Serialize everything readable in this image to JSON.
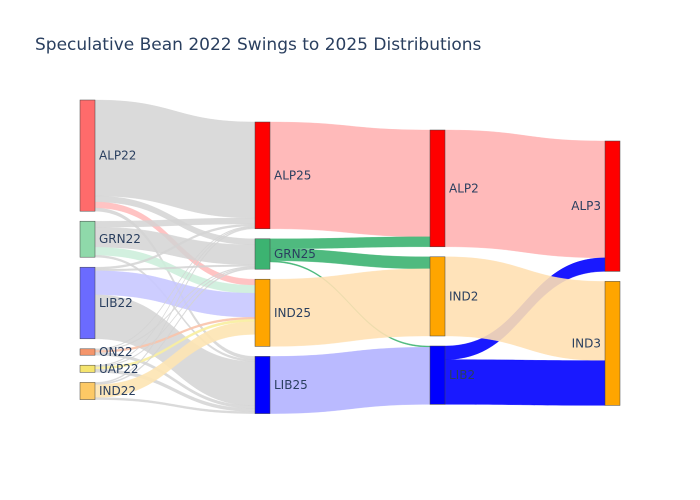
{
  "chart_data": {
    "type": "sankey",
    "title": "Speculative Bean 2022 Swings to 2025 Distributions",
    "nodes": [
      {
        "id": "ALP22",
        "label": "ALP22",
        "color": "#ff6b6b"
      },
      {
        "id": "GRN22",
        "label": "GRN22",
        "color": "#8fd9aa"
      },
      {
        "id": "LIB22",
        "label": "LIB22",
        "color": "#6b6bff"
      },
      {
        "id": "ON22",
        "label": "ON22",
        "color": "#f4956b"
      },
      {
        "id": "UAP22",
        "label": "UAP22",
        "color": "#f5e46e"
      },
      {
        "id": "IND22",
        "label": "IND22",
        "color": "#fdc965"
      },
      {
        "id": "ALP25",
        "label": "ALP25",
        "color": "#ff0000"
      },
      {
        "id": "GRN25",
        "label": "GRN25",
        "color": "#3cb371"
      },
      {
        "id": "IND25",
        "label": "IND25",
        "color": "#ffa500"
      },
      {
        "id": "LIB25",
        "label": "LIB25",
        "color": "#0000ff"
      },
      {
        "id": "ALP2",
        "label": "ALP2",
        "color": "#ff0000"
      },
      {
        "id": "IND2",
        "label": "IND2",
        "color": "#ffa500"
      },
      {
        "id": "LIB2",
        "label": "LIB2",
        "color": "#0000ff"
      },
      {
        "id": "ALP3",
        "label": "ALP3",
        "color": "#ff0000"
      },
      {
        "id": "IND3",
        "label": "IND3",
        "color": "#ffa500"
      }
    ],
    "links": [
      {
        "source": "ALP22",
        "target": "ALP25",
        "value": 24,
        "color": "#d3d3d3"
      },
      {
        "source": "ALP22",
        "target": "GRN25",
        "value": 1.5,
        "color": "#d3d3d3"
      },
      {
        "source": "ALP22",
        "target": "IND25",
        "value": 1.5,
        "color": "#ffbcbc"
      },
      {
        "source": "ALP22",
        "target": "LIB25",
        "value": 0.8,
        "color": "#d3d3d3"
      },
      {
        "source": "GRN22",
        "target": "ALP25",
        "value": 1.5,
        "color": "#d3d3d3"
      },
      {
        "source": "GRN22",
        "target": "GRN25",
        "value": 5,
        "color": "#d3d3d3"
      },
      {
        "source": "GRN22",
        "target": "IND25",
        "value": 2,
        "color": "#cdeedb"
      },
      {
        "source": "GRN22",
        "target": "LIB25",
        "value": 0.5,
        "color": "#d3d3d3"
      },
      {
        "source": "LIB22",
        "target": "ALP25",
        "value": 0.5,
        "color": "#d3d3d3"
      },
      {
        "source": "LIB22",
        "target": "GRN25",
        "value": 0.4,
        "color": "#d3d3d3"
      },
      {
        "source": "LIB22",
        "target": "IND25",
        "value": 6,
        "color": "#c8c8ff"
      },
      {
        "source": "LIB22",
        "target": "LIB25",
        "value": 11,
        "color": "#d3d3d3"
      },
      {
        "source": "ON22",
        "target": "ALP25",
        "value": 0.2,
        "color": "#d3d3d3"
      },
      {
        "source": "ON22",
        "target": "GRN25",
        "value": 0.2,
        "color": "#d3d3d3"
      },
      {
        "source": "ON22",
        "target": "IND25",
        "value": 0.5,
        "color": "#f9c3aa"
      },
      {
        "source": "ON22",
        "target": "LIB25",
        "value": 0.7,
        "color": "#d3d3d3"
      },
      {
        "source": "UAP22",
        "target": "ALP25",
        "value": 0.2,
        "color": "#d3d3d3"
      },
      {
        "source": "UAP22",
        "target": "GRN25",
        "value": 0.2,
        "color": "#d3d3d3"
      },
      {
        "source": "UAP22",
        "target": "IND25",
        "value": 0.6,
        "color": "#f8ee9f"
      },
      {
        "source": "UAP22",
        "target": "LIB25",
        "value": 0.8,
        "color": "#d3d3d3"
      },
      {
        "source": "IND22",
        "target": "ALP25",
        "value": 0.3,
        "color": "#d3d3d3"
      },
      {
        "source": "IND22",
        "target": "GRN25",
        "value": 0.3,
        "color": "#d3d3d3"
      },
      {
        "source": "IND22",
        "target": "IND25",
        "value": 3.2,
        "color": "#fde4b3"
      },
      {
        "source": "IND22",
        "target": "LIB25",
        "value": 0.5,
        "color": "#d3d3d3"
      },
      {
        "source": "ALP25",
        "target": "ALP2",
        "value": 26.7,
        "color": "#ffb3b3"
      },
      {
        "source": "GRN25",
        "target": "ALP2",
        "value": 2.5,
        "color": "#3cb371"
      },
      {
        "source": "GRN25",
        "target": "IND2",
        "value": 3,
        "color": "#3cb371"
      },
      {
        "source": "GRN25",
        "target": "LIB2",
        "value": 0.3,
        "color": "#3cb371"
      },
      {
        "source": "IND25",
        "target": "IND2",
        "value": 16.8,
        "color": "#ffe0b3"
      },
      {
        "source": "LIB25",
        "target": "LIB2",
        "value": 14.3,
        "color": "#b3b3ff"
      },
      {
        "source": "ALP2",
        "target": "ALP3",
        "value": 29.2,
        "color": "#ffb3b3"
      },
      {
        "source": "LIB2",
        "target": "ALP3",
        "value": 3.4,
        "color": "#0000ff"
      },
      {
        "source": "IND2",
        "target": "IND3",
        "value": 19.8,
        "color": "#ffe0b3"
      },
      {
        "source": "LIB2",
        "target": "IND3",
        "value": 11.2,
        "color": "#0000ff"
      }
    ]
  }
}
